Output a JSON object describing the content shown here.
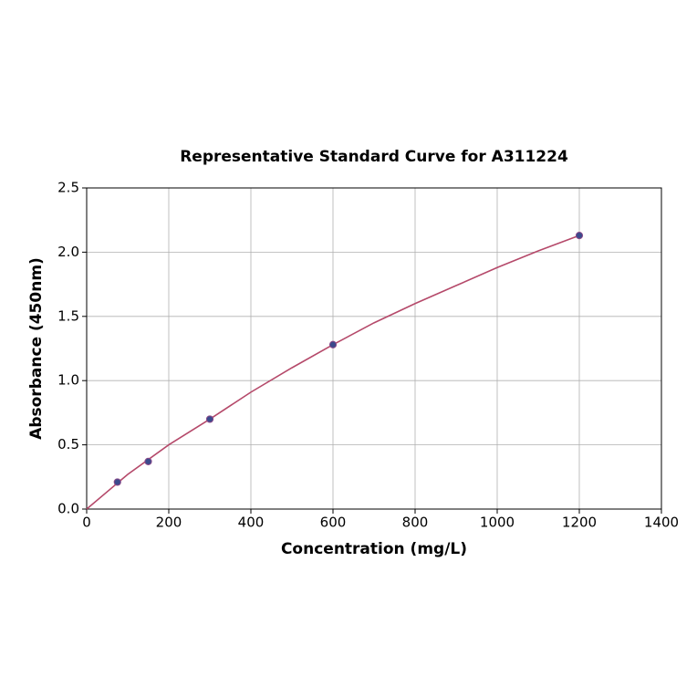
{
  "chart_data": {
    "type": "scatter",
    "title": "Representative Standard Curve for A311224",
    "x_label": "Concentration (mg/L)",
    "y_label": "Absorbance (450nm)",
    "xlim": [
      0,
      1400
    ],
    "xticks": [
      0,
      200,
      400,
      600,
      800,
      1000,
      1200,
      1400
    ],
    "ylim": [
      0,
      2.5
    ],
    "yticks": [
      {
        "value": 0,
        "label": "0.0"
      },
      0.5,
      {
        "value": 1,
        "label": "1.0"
      },
      1.5,
      {
        "value": 2,
        "label": "2.0"
      },
      2.5
    ],
    "grid": true,
    "points": {
      "x": [
        75,
        150,
        300,
        600,
        1200
      ],
      "y": [
        0.21,
        0.37,
        0.7,
        1.28,
        2.13
      ],
      "color": "#3b4a8c",
      "edge_color": "#8a4a8a"
    },
    "fit": {
      "x": [
        0,
        100,
        200,
        300,
        400,
        500,
        600,
        700,
        800,
        900,
        1000,
        1100,
        1200
      ],
      "y": [
        0,
        0.27,
        0.5,
        0.7,
        0.91,
        1.1,
        1.28,
        1.45,
        1.6,
        1.74,
        1.88,
        2.01,
        2.13
      ],
      "color": "#b5496a"
    }
  }
}
